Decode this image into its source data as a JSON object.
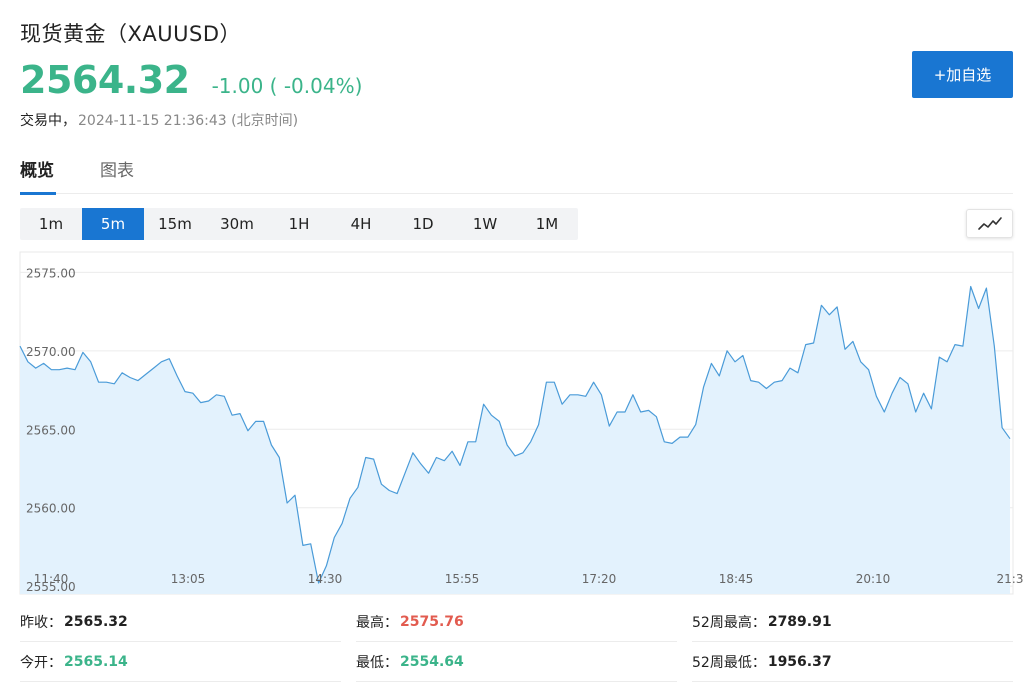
{
  "header": {
    "title": "现货黄金（XAUUSD）",
    "price": "2564.32",
    "change": "-1.00 ( -0.04%)",
    "status_label": "交易中，",
    "status_time": "2024-11-15 21:36:43 (北京时间)",
    "add_button": "+加自选",
    "accent_color": "#1976d2",
    "up_color": "#3bb48a"
  },
  "tabs": [
    {
      "label": "概览",
      "active": true
    },
    {
      "label": "图表",
      "active": false
    }
  ],
  "intervals": [
    {
      "label": "1m",
      "active": false
    },
    {
      "label": "5m",
      "active": true
    },
    {
      "label": "15m",
      "active": false
    },
    {
      "label": "30m",
      "active": false
    },
    {
      "label": "1H",
      "active": false
    },
    {
      "label": "4H",
      "active": false
    },
    {
      "label": "1D",
      "active": false
    },
    {
      "label": "1W",
      "active": false
    },
    {
      "label": "1M",
      "active": false
    }
  ],
  "chart_toggle_icon": "line-chart-icon",
  "chart_data": {
    "type": "area",
    "y_ticks": [
      "2575.00",
      "2570.00",
      "2565.00",
      "2560.00",
      "2555.00"
    ],
    "ylim": [
      2554.5,
      2576.3
    ],
    "x_ticks": [
      "11:40",
      "13:05",
      "14:30",
      "15:55",
      "17:20",
      "18:45",
      "20:10",
      "21:3"
    ],
    "line_color": "#4a9bd8",
    "fill_color": "#e3f2fd",
    "grid": true,
    "series": [
      {
        "values": [
          2570.3,
          2569.3,
          2568.9,
          2569.2,
          2568.8,
          2568.8,
          2568.9,
          2568.8,
          2569.9,
          2569.3,
          2568.0,
          2568.0,
          2567.9,
          2568.6,
          2568.3,
          2568.1,
          2568.5,
          2568.9,
          2569.3,
          2569.5,
          2568.4,
          2567.4,
          2567.3,
          2566.7,
          2566.8,
          2567.2,
          2567.1,
          2565.9,
          2566.0,
          2564.9,
          2565.5,
          2565.5,
          2564.0,
          2563.2,
          2560.3,
          2560.8,
          2557.6,
          2557.7,
          2555.2,
          2556.3,
          2558.1,
          2559.0,
          2560.6,
          2561.3,
          2563.2,
          2563.1,
          2561.5,
          2561.1,
          2560.9,
          2562.2,
          2563.5,
          2562.8,
          2562.2,
          2563.2,
          2563.0,
          2563.6,
          2562.7,
          2564.2,
          2564.2,
          2566.6,
          2565.9,
          2565.5,
          2564.0,
          2563.3,
          2563.5,
          2564.2,
          2565.3,
          2568.0,
          2568.0,
          2566.6,
          2567.2,
          2567.2,
          2567.1,
          2568.0,
          2567.2,
          2565.2,
          2566.1,
          2566.1,
          2567.2,
          2566.1,
          2566.2,
          2565.8,
          2564.2,
          2564.1,
          2564.5,
          2564.5,
          2565.3,
          2567.7,
          2569.2,
          2568.4,
          2570.0,
          2569.3,
          2569.7,
          2568.1,
          2568.0,
          2567.6,
          2568.0,
          2568.1,
          2568.9,
          2568.6,
          2570.4,
          2570.5,
          2572.9,
          2572.3,
          2572.8,
          2570.1,
          2570.6,
          2569.3,
          2568.8,
          2567.1,
          2566.1,
          2567.3,
          2568.3,
          2567.9,
          2566.1,
          2567.3,
          2566.3,
          2569.6,
          2569.3,
          2570.4,
          2570.3,
          2574.1,
          2572.7,
          2574.0,
          2570.3,
          2565.1,
          2564.4
        ]
      }
    ]
  },
  "stats": [
    [
      {
        "label": "昨收：",
        "value": "2565.32",
        "color": "dark"
      },
      {
        "label": "最高：",
        "value": "2575.76",
        "color": "red"
      },
      {
        "label": "52周最高：",
        "value": "2789.91",
        "color": "dark"
      }
    ],
    [
      {
        "label": "今开：",
        "value": "2565.14",
        "color": "green"
      },
      {
        "label": "最低：",
        "value": "2554.64",
        "color": "green"
      },
      {
        "label": "52周最低：",
        "value": "1956.37",
        "color": "dark"
      }
    ]
  ]
}
